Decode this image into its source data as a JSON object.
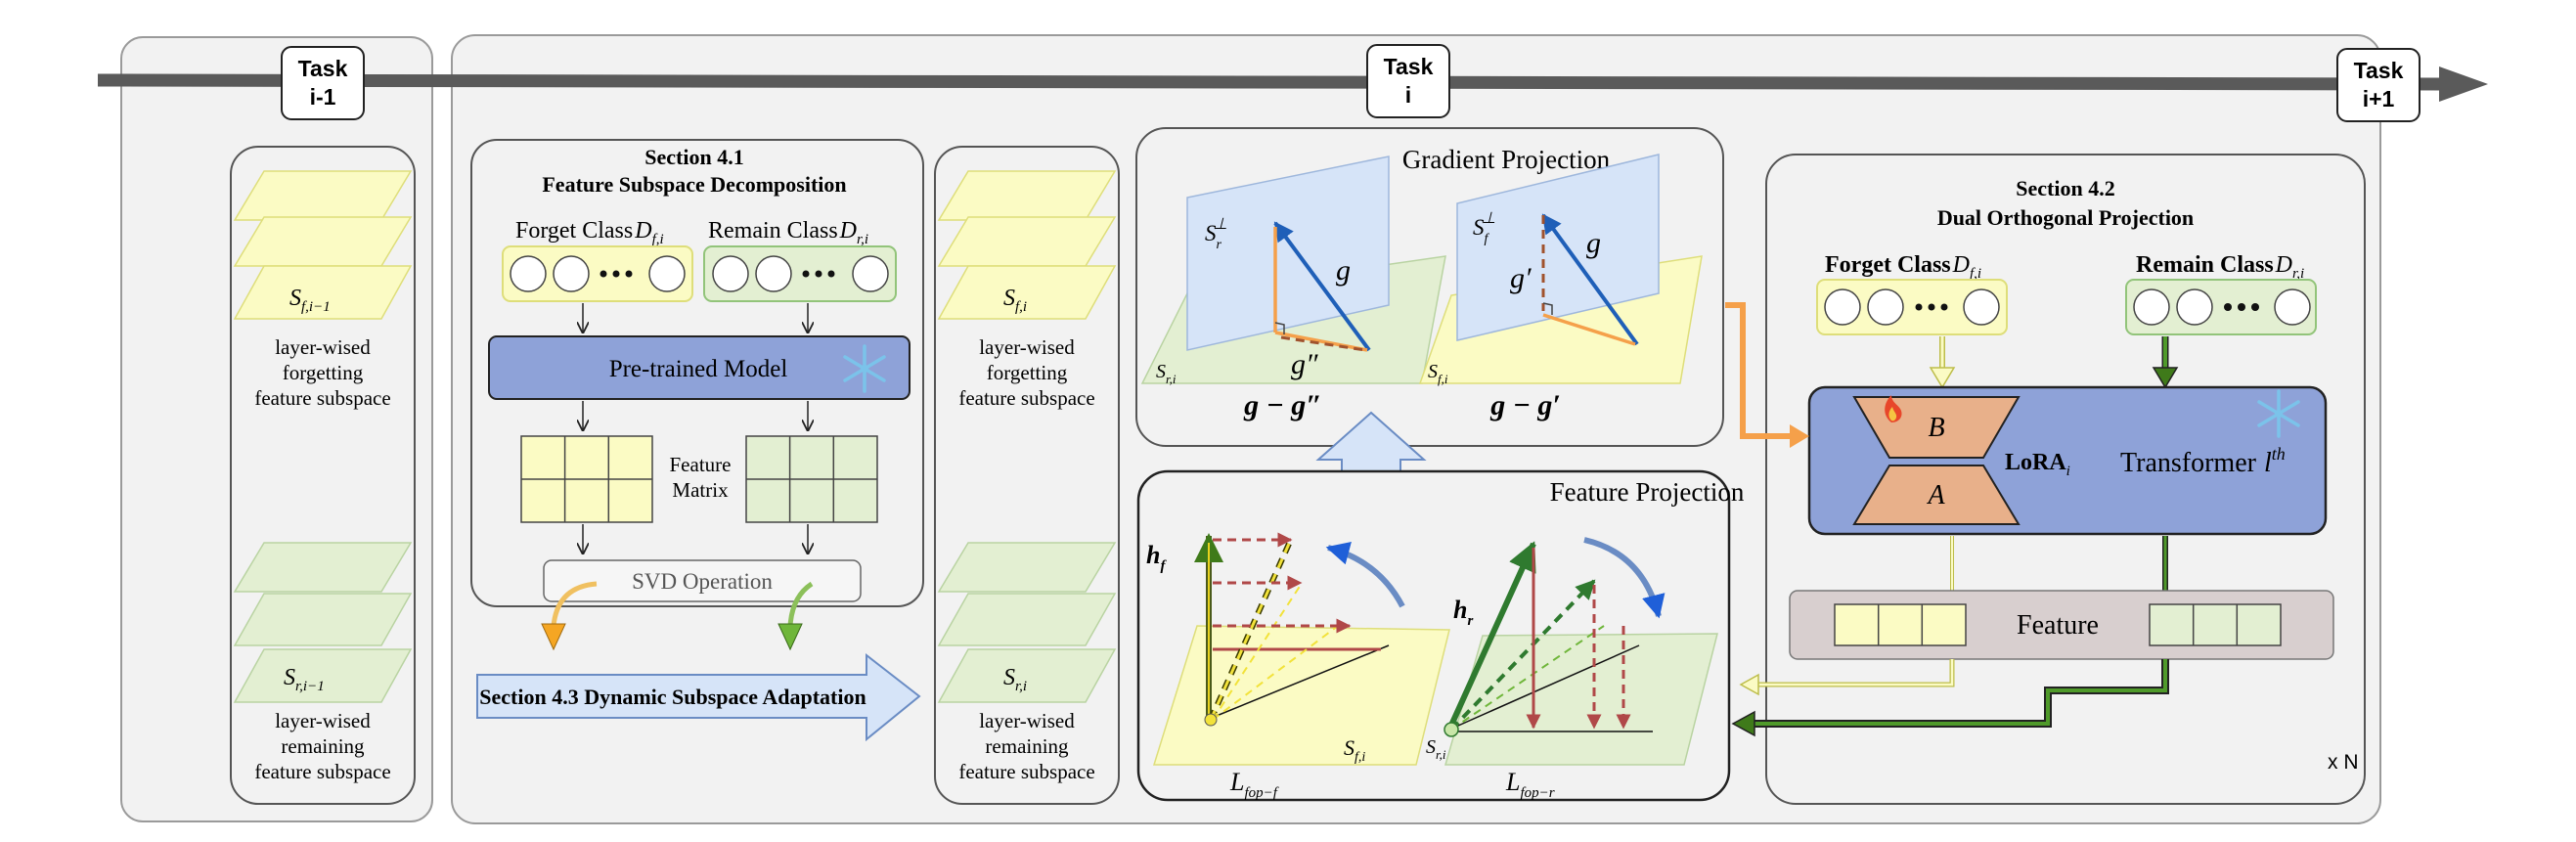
{
  "timeline": {
    "prev_task": {
      "line1": "Task",
      "line2": "i-1"
    },
    "current_task": {
      "line1": "Task",
      "line2": "i"
    },
    "next_task": {
      "line1": "Task",
      "line2": "i+1"
    }
  },
  "prev_column": {
    "forget_layer_label": "S",
    "forget_layer_sub": "f,i−1",
    "forget_caption": [
      "layer-wised",
      "forgetting",
      "feature subspace"
    ],
    "remain_layer_label": "S",
    "remain_layer_sub": "r,i−1",
    "remain_caption": [
      "layer-wised",
      "remaining",
      "feature subspace"
    ]
  },
  "section_41": {
    "title": "Section 4.1",
    "subtitle": "Feature Subspace Decomposition",
    "forget_label": "Forget Class",
    "forget_sym": "D",
    "forget_sub": "f,i",
    "remain_label": "Remain Class",
    "remain_sym": "D",
    "remain_sub": "r,i",
    "pretrained": "Pre-trained Model",
    "feature_matrix": [
      "Feature",
      "Matrix"
    ],
    "svd": "SVD Operation"
  },
  "section_43": {
    "label": "Section 4.3 Dynamic Subspace Adaptation"
  },
  "cur_column": {
    "forget_layer_label": "S",
    "forget_layer_sub": "f,i",
    "forget_caption": [
      "layer-wised",
      "forgetting",
      "feature subspace"
    ],
    "remain_layer_label": "S",
    "remain_layer_sub": "r,i",
    "remain_caption": [
      "layer-wised",
      "remaining",
      "feature subspace"
    ]
  },
  "gradient_projection": {
    "title": "Gradient Projection",
    "left": {
      "plane_top": "S",
      "plane_top_sub": "r",
      "plane_top_sup": "⊥",
      "g": "g",
      "g2": "g″",
      "plane_bottom": "S",
      "plane_bottom_sub": "r,i",
      "result": "g − g″"
    },
    "right": {
      "plane_top": "S",
      "plane_top_sub": "f",
      "plane_top_sup": "⊥",
      "g": "g",
      "g1": "g′",
      "plane_bottom": "S",
      "plane_bottom_sub": "f,i",
      "result": "g − g′"
    }
  },
  "feature_projection": {
    "title": "Feature Projection",
    "left": {
      "h": "h",
      "h_sub": "f",
      "plane": "S",
      "plane_sub": "f,i",
      "loss": "L",
      "loss_sub": "fop−f"
    },
    "right": {
      "h": "h",
      "h_sub": "r",
      "plane": "S",
      "plane_sub": "r,i",
      "loss": "L",
      "loss_sub": "fop−r"
    }
  },
  "section_42": {
    "title": "Section 4.2",
    "subtitle": "Dual Orthogonal Projection",
    "forget_label": "Forget Class",
    "forget_sym": "D",
    "forget_sub": "f,i",
    "remain_label": "Remain Class",
    "remain_sym": "D",
    "remain_sub": "r,i",
    "lora_b": "B",
    "lora_a": "A",
    "lora_label": "LoRA",
    "lora_sub": "i",
    "transformer": "Transformer",
    "transformer_sym": "l",
    "transformer_sup": "th",
    "feature": "Feature",
    "repeat": "x N"
  },
  "colors": {
    "forget_yellow": "#fbfbc4",
    "forget_border": "#dede7a",
    "remain_green": "#e3efd2",
    "remain_border": "#92c47a",
    "model_blue": "#8ea2d8",
    "lora_orange": "#e8b08a",
    "plane_blue": "#d6e4f8",
    "arrow_orange": "#f5a04a",
    "arrow_green": "#3f7a1a"
  }
}
